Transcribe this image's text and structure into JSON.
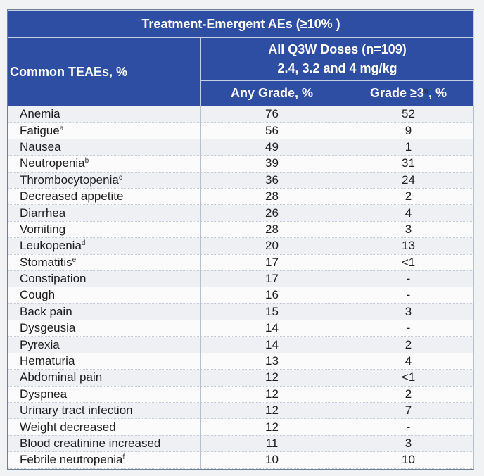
{
  "table": {
    "title": "Treatment-Emergent AEs (≥10% )",
    "row_header": "Common TEAEs, %",
    "dose_line1": "All Q3W Doses (n=109)",
    "dose_line2": "2.4, 3.2 and 4 mg/kg",
    "col_any": "Any Grade, %",
    "col_grade3": "Grade ≥3",
    "col_grade3_sup": "g",
    "col_grade3_suffix": ", %",
    "rows": [
      {
        "term": "Anemia",
        "sup": "",
        "any": "76",
        "g3": "52"
      },
      {
        "term": "Fatigue",
        "sup": "a",
        "any": "56",
        "g3": "9"
      },
      {
        "term": "Nausea",
        "sup": "",
        "any": "49",
        "g3": "1"
      },
      {
        "term": "Neutropenia",
        "sup": "b",
        "any": "39",
        "g3": "31"
      },
      {
        "term": "Thrombocytopenia",
        "sup": "c",
        "any": "36",
        "g3": "24"
      },
      {
        "term": "Decreased appetite",
        "sup": "",
        "any": "28",
        "g3": "2"
      },
      {
        "term": "Diarrhea",
        "sup": "",
        "any": "26",
        "g3": "4"
      },
      {
        "term": "Vomiting",
        "sup": "",
        "any": "28",
        "g3": "3"
      },
      {
        "term": "Leukopenia",
        "sup": "d",
        "any": "20",
        "g3": "13"
      },
      {
        "term": "Stomatitis",
        "sup": "e",
        "any": "17",
        "g3": "<1"
      },
      {
        "term": "Constipation",
        "sup": "",
        "any": "17",
        "g3": "-"
      },
      {
        "term": "Cough",
        "sup": "",
        "any": "16",
        "g3": "-"
      },
      {
        "term": "Back pain",
        "sup": "",
        "any": "15",
        "g3": "3"
      },
      {
        "term": "Dysgeusia",
        "sup": "",
        "any": "14",
        "g3": "-"
      },
      {
        "term": "Pyrexia",
        "sup": "",
        "any": "14",
        "g3": "2"
      },
      {
        "term": "Hematuria",
        "sup": "",
        "any": "13",
        "g3": "4"
      },
      {
        "term": "Abdominal pain",
        "sup": "",
        "any": "12",
        "g3": "<1"
      },
      {
        "term": "Dyspnea",
        "sup": "",
        "any": "12",
        "g3": "2"
      },
      {
        "term": "Urinary tract infection",
        "sup": "",
        "any": "12",
        "g3": "7"
      },
      {
        "term": "Weight decreased",
        "sup": "",
        "any": "12",
        "g3": "-"
      },
      {
        "term": "Blood creatinine increased",
        "sup": "",
        "any": "11",
        "g3": "3"
      },
      {
        "term": "Febrile neutropenia",
        "sup": "f",
        "any": "10",
        "g3": "10"
      }
    ]
  }
}
